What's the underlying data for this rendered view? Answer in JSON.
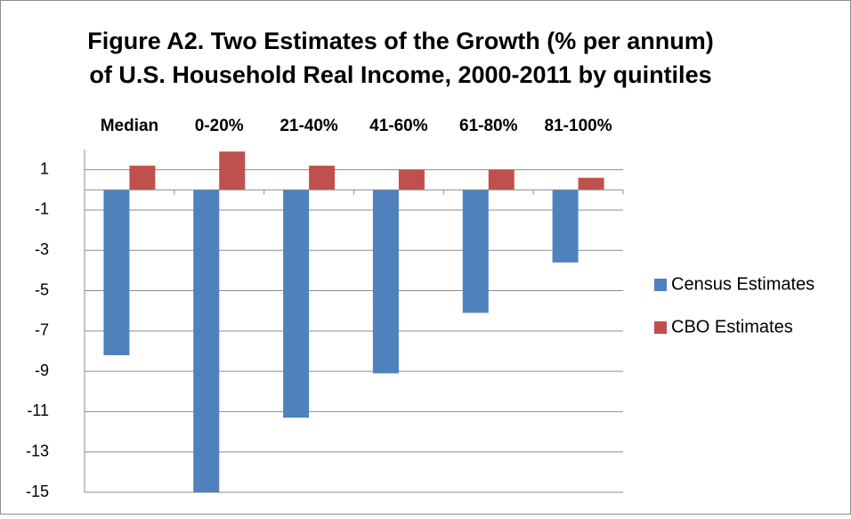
{
  "chart_data": {
    "type": "bar",
    "title": [
      "Figure A2. Two Estimates of the Growth (% per annum)",
      "of U.S. Household Real Income, 2000-2011 by quintiles"
    ],
    "categories": [
      "Median",
      "0-20%",
      "21-40%",
      "41-60%",
      "61-80%",
      "81-100%"
    ],
    "series": [
      {
        "name": "Census Estimates",
        "color": "#4f81bd",
        "values": [
          -8.2,
          -15,
          -11.3,
          -9.1,
          -6.1,
          -3.6
        ]
      },
      {
        "name": "CBO Estimates",
        "color": "#c0504d",
        "values": [
          1.2,
          1.9,
          1.2,
          1.0,
          1.0,
          0.6
        ]
      }
    ],
    "ylim": [
      -15,
      2
    ],
    "yticks": [
      1,
      -1,
      -3,
      -5,
      -7,
      -9,
      -11,
      -13,
      -15
    ],
    "grid": true,
    "legend": "right"
  }
}
